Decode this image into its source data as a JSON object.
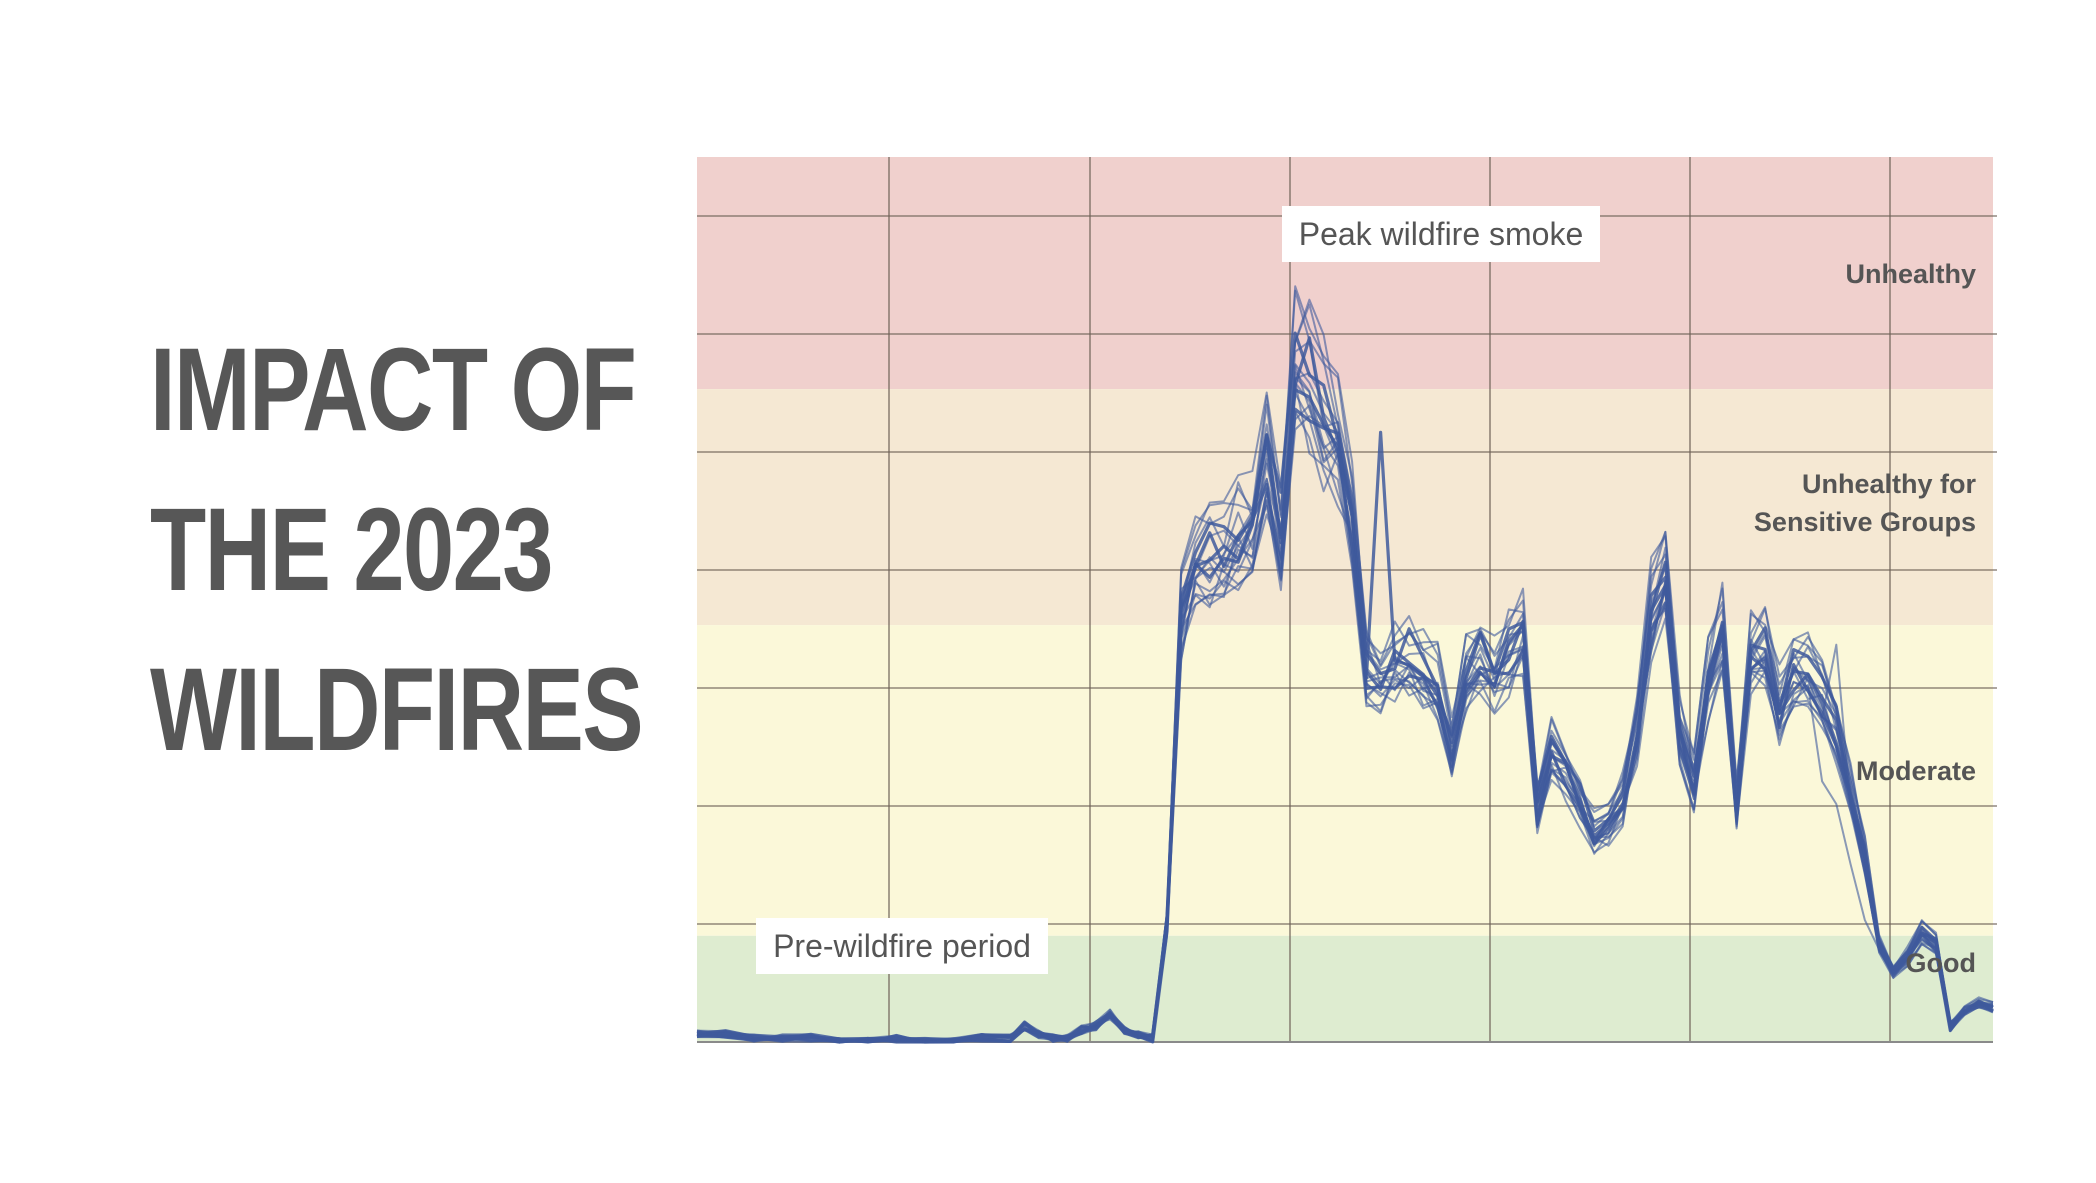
{
  "slide": {
    "title_lines": [
      "IMPACT OF",
      "THE 2023",
      "WILDFIRES"
    ]
  },
  "colors": {
    "title": "#575757",
    "series_line": "#3f5a9c",
    "band_unhealthy": "#f0d0cd",
    "band_sensitive": "#f5e8d3",
    "band_moderate": "#fbf8d9",
    "band_good": "#deecd0",
    "grid": "#6e6157",
    "label_text": "#555555"
  },
  "chart_data": {
    "type": "line",
    "title": "",
    "xlabel": "",
    "ylabel": "",
    "x_range": [
      0,
      91
    ],
    "ylim": [
      0,
      225
    ],
    "grid": true,
    "legend": "none",
    "bands": [
      {
        "label": "Unhealthy",
        "from": 166,
        "to": 225
      },
      {
        "label": "Unhealthy for Sensitive Groups",
        "from": 106,
        "to": 166
      },
      {
        "label": "Moderate",
        "from": 27,
        "to": 106
      },
      {
        "label": "Good",
        "from": 0,
        "to": 27
      }
    ],
    "band_label_lines": {
      "unhealthy": [
        "Unhealthy"
      ],
      "sensitive": [
        "Unhealthy for",
        "Sensitive Groups"
      ],
      "moderate": [
        "Moderate"
      ],
      "good": [
        "Good"
      ]
    },
    "annotations": {
      "peak": "Peak wildfire smoke",
      "pre": "Pre-wildfire period"
    },
    "series_count": 20,
    "base_series": [
      [
        0,
        2
      ],
      [
        2,
        2
      ],
      [
        4,
        1
      ],
      [
        6,
        1
      ],
      [
        8,
        1
      ],
      [
        10,
        0
      ],
      [
        12,
        0
      ],
      [
        14,
        1
      ],
      [
        16,
        0
      ],
      [
        18,
        0
      ],
      [
        20,
        1
      ],
      [
        22,
        1
      ],
      [
        23,
        4
      ],
      [
        24,
        2
      ],
      [
        25,
        1
      ],
      [
        26,
        1
      ],
      [
        27,
        3
      ],
      [
        28,
        4
      ],
      [
        29,
        7
      ],
      [
        30,
        3
      ],
      [
        31,
        2
      ],
      [
        32,
        1
      ],
      [
        33,
        30
      ],
      [
        34,
        110
      ],
      [
        35,
        122
      ],
      [
        36,
        124
      ],
      [
        37,
        125
      ],
      [
        38,
        130
      ],
      [
        39,
        132
      ],
      [
        40,
        151
      ],
      [
        41,
        130
      ],
      [
        42,
        173
      ],
      [
        43,
        171
      ],
      [
        44,
        160
      ],
      [
        45,
        154
      ],
      [
        46,
        134
      ],
      [
        47,
        96
      ],
      [
        48,
        93
      ],
      [
        49,
        97
      ],
      [
        50,
        98
      ],
      [
        51,
        95
      ],
      [
        52,
        92
      ],
      [
        53,
        75
      ],
      [
        54,
        95
      ],
      [
        55,
        100
      ],
      [
        56,
        94
      ],
      [
        57,
        100
      ],
      [
        58,
        106
      ],
      [
        59,
        60
      ],
      [
        60,
        75
      ],
      [
        61,
        70
      ],
      [
        62,
        62
      ],
      [
        63,
        54
      ],
      [
        64,
        56
      ],
      [
        65,
        62
      ],
      [
        66,
        80
      ],
      [
        67,
        110
      ],
      [
        68,
        120
      ],
      [
        69,
        80
      ],
      [
        70,
        66
      ],
      [
        71,
        92
      ],
      [
        72,
        105
      ],
      [
        73,
        60
      ],
      [
        74,
        100
      ],
      [
        75,
        102
      ],
      [
        76,
        86
      ],
      [
        77,
        95
      ],
      [
        78,
        96
      ],
      [
        79,
        90
      ],
      [
        80,
        80
      ],
      [
        81,
        64
      ],
      [
        82,
        48
      ],
      [
        83,
        25
      ],
      [
        84,
        18
      ],
      [
        85,
        22
      ],
      [
        86,
        28
      ],
      [
        87,
        25
      ],
      [
        88,
        4
      ],
      [
        89,
        8
      ],
      [
        90,
        10
      ],
      [
        91,
        9
      ]
    ]
  }
}
